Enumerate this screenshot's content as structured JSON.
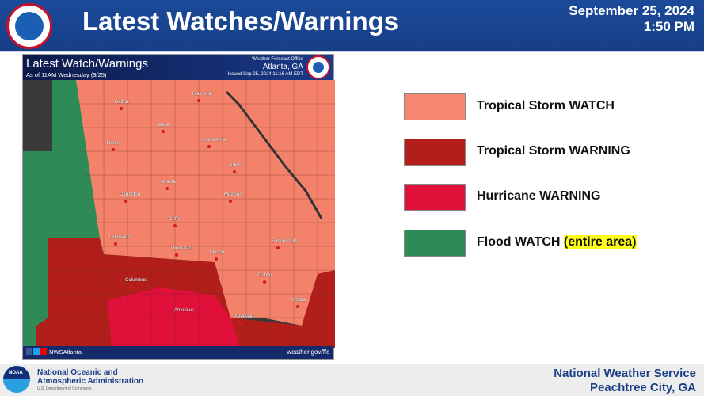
{
  "header": {
    "title": "Latest Watches/Warnings",
    "date": "September 25, 2024",
    "time": "1:50 PM"
  },
  "map": {
    "title": "Latest Watch/Warnings",
    "as_of": "As of 11AM Wednesday (9/25)",
    "office_label": "Weather Forecast Office",
    "office": "Atlanta, GA",
    "issued": "Issued Sep 25, 2024 11:16 AM EDT",
    "social": "NWSAtlanta",
    "site": "weather.gov/ffc",
    "cities": [
      "Dalton",
      "Blairsville",
      "Jasper",
      "Rome",
      "Gainesville",
      "Athens",
      "Atlanta",
      "Carrollton",
      "Madison",
      "Griffin",
      "LaGrange",
      "Thomaston",
      "Macon",
      "Sandersville",
      "Columbus",
      "Dublin",
      "Americus",
      "Vidalia",
      "Abbeville"
    ],
    "colors": {
      "watch": "#f4826b",
      "ts_warning": "#b21f1a",
      "hurricane": "#e0103a",
      "flood": "#2e8b57"
    }
  },
  "legend": [
    {
      "label": "Tropical Storm WATCH",
      "color": "#f68670"
    },
    {
      "label": "Tropical Storm WARNING",
      "color": "#b21f1a"
    },
    {
      "label": "Hurricane WARNING",
      "color": "#e0103a"
    },
    {
      "label": "Flood WATCH",
      "highlight": "(entire area)",
      "color": "#2e8b57"
    }
  ],
  "footer": {
    "noaa_line1": "National Oceanic and",
    "noaa_line2": "Atmospheric Administration",
    "dept": "U.S. Department of Commerce",
    "nws": "National Weather Service",
    "location": "Peachtree City, GA",
    "noaa_logo_text": "NOAA"
  }
}
